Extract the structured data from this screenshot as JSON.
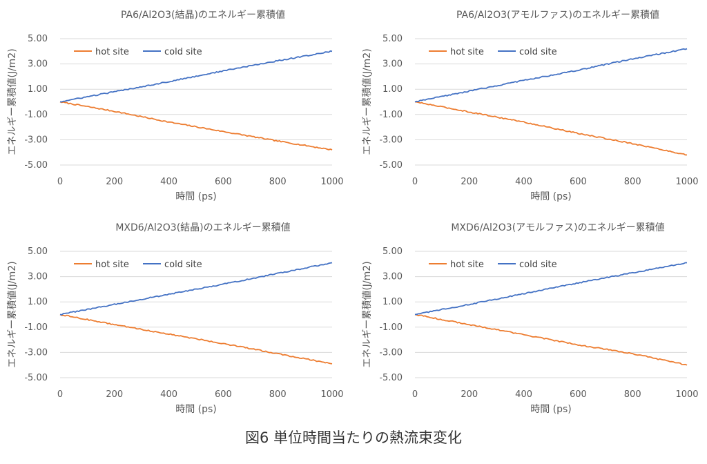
{
  "caption": "図6 単位時間当たりの熱流束変化",
  "colors": {
    "hot": "#ED7D31",
    "cold": "#4472C4"
  },
  "chart_data": [
    {
      "type": "line",
      "title": "PA6/Al2O3(結晶)のエネルギー累積値",
      "xlabel": "時間 (ps)",
      "ylabel": "エネルギー累積値(J/m2)",
      "xlim": [
        0,
        1000
      ],
      "ylim": [
        -5,
        5
      ],
      "xticks": [
        "0",
        "200",
        "400",
        "600",
        "800",
        "1000"
      ],
      "yticks": [
        "5.00",
        "3.00",
        "1.00",
        "-1.00",
        "-3.00",
        "-5.00"
      ],
      "legend": "top-left",
      "series": [
        {
          "name": "hot site",
          "x": [
            0,
            200,
            400,
            600,
            800,
            1000
          ],
          "values": [
            0,
            -0.75,
            -1.6,
            -2.35,
            -3.1,
            -3.8
          ]
        },
        {
          "name": "cold site",
          "x": [
            0,
            200,
            400,
            600,
            800,
            1000
          ],
          "values": [
            0,
            0.8,
            1.6,
            2.45,
            3.25,
            4.0
          ]
        }
      ]
    },
    {
      "type": "line",
      "title": "PA6/Al2O3(アモルファス)のエネルギー累積値",
      "xlabel": "時間 (ps)",
      "ylabel": "エネルギー累積値(J/m2)",
      "xlim": [
        0,
        1000
      ],
      "ylim": [
        -5,
        5
      ],
      "xticks": [
        "0",
        "200",
        "400",
        "600",
        "800",
        "1000"
      ],
      "yticks": [
        "5.00",
        "3.00",
        "1.00",
        "-1.00",
        "-3.00",
        "-5.00"
      ],
      "legend": "top-left",
      "series": [
        {
          "name": "hot site",
          "x": [
            0,
            200,
            400,
            600,
            800,
            1000
          ],
          "values": [
            0,
            -0.8,
            -1.6,
            -2.5,
            -3.3,
            -4.2
          ]
        },
        {
          "name": "cold site",
          "x": [
            0,
            200,
            400,
            600,
            800,
            1000
          ],
          "values": [
            0,
            0.85,
            1.7,
            2.5,
            3.4,
            4.2
          ]
        }
      ]
    },
    {
      "type": "line",
      "title": "MXD6/Al2O3(結晶)のエネルギー累積値",
      "xlabel": "時間 (ps)",
      "ylabel": "エネルギー累積値(J/m2)",
      "xlim": [
        0,
        1000
      ],
      "ylim": [
        -5,
        5
      ],
      "xticks": [
        "0",
        "200",
        "400",
        "600",
        "800",
        "1000"
      ],
      "yticks": [
        "5.00",
        "3.00",
        "1.00",
        "-1.00",
        "-3.00",
        "-5.00"
      ],
      "legend": "top-left",
      "series": [
        {
          "name": "hot site",
          "x": [
            0,
            200,
            400,
            600,
            800,
            1000
          ],
          "values": [
            0,
            -0.8,
            -1.55,
            -2.3,
            -3.1,
            -3.9
          ]
        },
        {
          "name": "cold site",
          "x": [
            0,
            200,
            400,
            600,
            800,
            1000
          ],
          "values": [
            0,
            0.8,
            1.6,
            2.4,
            3.25,
            4.1
          ]
        }
      ]
    },
    {
      "type": "line",
      "title": "MXD6/Al2O3(アモルファス)のエネルギー累積値",
      "xlabel": "時間 (ps)",
      "ylabel": "エネルギー累積値(J/m2)",
      "xlim": [
        0,
        1000
      ],
      "ylim": [
        -5,
        5
      ],
      "xticks": [
        "0",
        "200",
        "400",
        "600",
        "800",
        "1000"
      ],
      "yticks": [
        "5.00",
        "3.00",
        "1.00",
        "-1.00",
        "-3.00",
        "-5.00"
      ],
      "legend": "top-left",
      "series": [
        {
          "name": "hot site",
          "x": [
            0,
            200,
            400,
            600,
            800,
            1000
          ],
          "values": [
            0,
            -0.8,
            -1.6,
            -2.4,
            -3.1,
            -4.0
          ]
        },
        {
          "name": "cold site",
          "x": [
            0,
            200,
            400,
            600,
            800,
            1000
          ],
          "values": [
            0,
            0.8,
            1.65,
            2.5,
            3.3,
            4.1
          ]
        }
      ]
    }
  ]
}
